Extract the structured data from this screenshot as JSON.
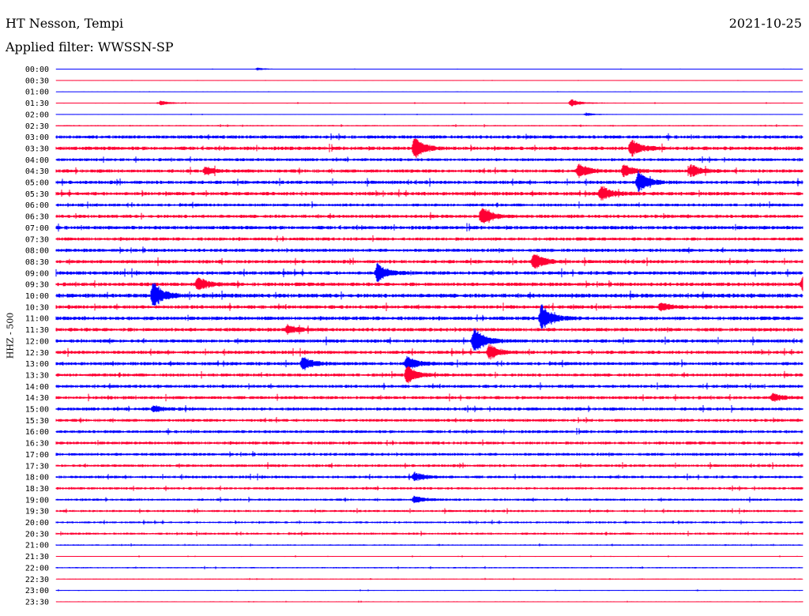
{
  "header": {
    "station": "HT Nesson, Tempi",
    "date": "2021-10-25",
    "filter_label": "Applied filter: WWSSN-SP"
  },
  "chart_data": {
    "type": "line",
    "title": "HT Nesson, Tempi",
    "subtitle": "Applied filter: WWSSN-SP",
    "ylabel": "HHZ - 500",
    "xlabel": "",
    "grid": false,
    "colors": [
      "#0000ff",
      "#ff0033"
    ],
    "rows": [
      "00:00",
      "00:30",
      "01:00",
      "01:30",
      "02:00",
      "02:30",
      "03:00",
      "03:30",
      "04:00",
      "04:30",
      "05:00",
      "05:30",
      "06:00",
      "06:30",
      "07:00",
      "07:30",
      "08:00",
      "08:30",
      "09:00",
      "09:30",
      "10:00",
      "10:30",
      "11:00",
      "11:30",
      "12:00",
      "12:30",
      "13:00",
      "13:30",
      "14:00",
      "14:30",
      "15:00",
      "15:30",
      "16:00",
      "16:30",
      "17:00",
      "17:30",
      "18:00",
      "18:30",
      "19:00",
      "19:30",
      "20:00",
      "20:30",
      "21:00",
      "21:30",
      "22:00",
      "22:30",
      "23:00",
      "23:30"
    ],
    "noise": [
      0.2,
      0.2,
      0.2,
      0.4,
      0.3,
      0.6,
      1.5,
      1.6,
      1.3,
      1.5,
      1.5,
      1.6,
      1.3,
      1.5,
      1.6,
      1.4,
      1.5,
      1.5,
      1.6,
      1.6,
      1.8,
      1.6,
      1.6,
      1.6,
      1.5,
      1.5,
      1.5,
      1.4,
      1.4,
      1.4,
      1.4,
      1.3,
      1.3,
      1.3,
      1.3,
      1.2,
      1.2,
      1.1,
      1.0,
      1.0,
      0.9,
      1.0,
      0.6,
      0.4,
      0.6,
      0.4,
      0.4,
      0.4
    ],
    "events": [
      {
        "row": 0,
        "t": 0.27,
        "amp": 2
      },
      {
        "row": 3,
        "t": 0.14,
        "amp": 3
      },
      {
        "row": 3,
        "t": 0.69,
        "amp": 5
      },
      {
        "row": 4,
        "t": 0.71,
        "amp": 2
      },
      {
        "row": 7,
        "t": 0.48,
        "amp": 14
      },
      {
        "row": 7,
        "t": 0.77,
        "amp": 12
      },
      {
        "row": 9,
        "t": 0.2,
        "amp": 5
      },
      {
        "row": 9,
        "t": 0.7,
        "amp": 9
      },
      {
        "row": 9,
        "t": 0.76,
        "amp": 8
      },
      {
        "row": 9,
        "t": 0.85,
        "amp": 8
      },
      {
        "row": 10,
        "t": 0.78,
        "amp": 14
      },
      {
        "row": 11,
        "t": 0.73,
        "amp": 10
      },
      {
        "row": 13,
        "t": 0.57,
        "amp": 12
      },
      {
        "row": 17,
        "t": 0.64,
        "amp": 12
      },
      {
        "row": 18,
        "t": 0.43,
        "amp": 12
      },
      {
        "row": 19,
        "t": 0.19,
        "amp": 9
      },
      {
        "row": 19,
        "t": 1.0,
        "amp": 10
      },
      {
        "row": 20,
        "t": 0.13,
        "amp": 18
      },
      {
        "row": 21,
        "t": 0.81,
        "amp": 6
      },
      {
        "row": 22,
        "t": 0.65,
        "amp": 18
      },
      {
        "row": 23,
        "t": 0.31,
        "amp": 6
      },
      {
        "row": 24,
        "t": 0.56,
        "amp": 18
      },
      {
        "row": 25,
        "t": 0.58,
        "amp": 10
      },
      {
        "row": 26,
        "t": 0.33,
        "amp": 9
      },
      {
        "row": 26,
        "t": 0.47,
        "amp": 10
      },
      {
        "row": 27,
        "t": 0.47,
        "amp": 12
      },
      {
        "row": 29,
        "t": 0.96,
        "amp": 5
      },
      {
        "row": 30,
        "t": 0.13,
        "amp": 4
      },
      {
        "row": 36,
        "t": 0.48,
        "amp": 6
      },
      {
        "row": 38,
        "t": 0.48,
        "amp": 5
      }
    ]
  }
}
